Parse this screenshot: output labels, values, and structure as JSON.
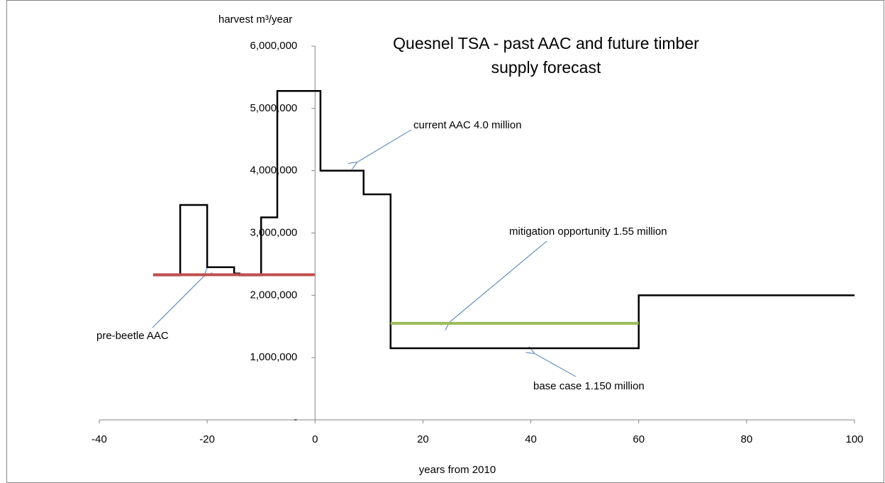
{
  "chart_data": {
    "type": "line",
    "title": [
      "Quesnel TSA - past AAC and future timber",
      "supply forecast"
    ],
    "y_label": "harvest m³/year",
    "x_label": "years from 2010",
    "xlim": [
      -40,
      100
    ],
    "xticks": [
      -40,
      -20,
      0,
      20,
      40,
      60,
      80,
      100
    ],
    "ylim": [
      0,
      6000000
    ],
    "yticks": [
      {
        "value": 0,
        "label": "-"
      },
      {
        "value": 1000000,
        "label": "1,000,000"
      },
      {
        "value": 2000000,
        "label": "2,000,000"
      },
      {
        "value": 3000000,
        "label": "3,000,000"
      },
      {
        "value": 4000000,
        "label": "4,000,000"
      },
      {
        "value": 5000000,
        "label": "5,000,000"
      },
      {
        "value": 6000000,
        "label": "6,000,000"
      }
    ],
    "grid": false,
    "series": [
      {
        "color": "#000000",
        "x": [
          -30,
          -25,
          -25,
          -20,
          -20,
          -15,
          -15,
          -14,
          -14,
          -10,
          -10,
          -7,
          -7,
          1,
          1,
          9,
          9,
          14,
          14,
          60,
          60,
          100
        ],
        "values": [
          2320000,
          2320000,
          3450000,
          3450000,
          2450000,
          2450000,
          2350000,
          2350000,
          2320000,
          2320000,
          3250000,
          3250000,
          5280000,
          5280000,
          4000000,
          4000000,
          3620000,
          3620000,
          1150000,
          1150000,
          2000000,
          2000000
        ]
      },
      {
        "color": "#c0504d",
        "x": [
          -30,
          0
        ],
        "values": [
          2330000,
          2330000
        ]
      },
      {
        "color": "#9bbb59",
        "x": [
          14,
          60
        ],
        "values": [
          1550000,
          1550000
        ]
      }
    ],
    "annotations": [
      "current AAC 4.0 million",
      "mitigation opportunity 1.55 million",
      "pre-beetle AAC",
      "base case 1.150 million"
    ]
  }
}
